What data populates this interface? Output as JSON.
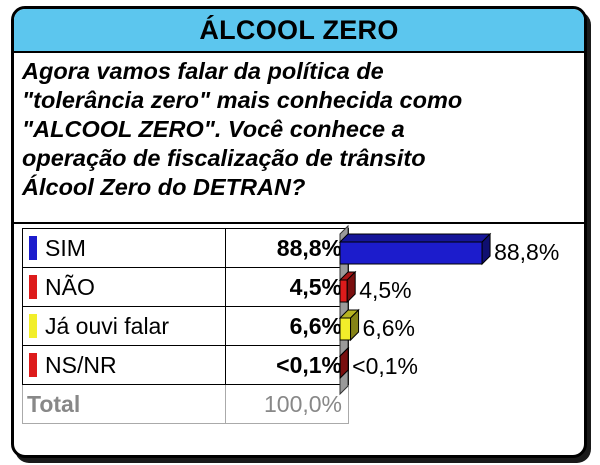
{
  "header": {
    "title": "ÁLCOOL ZERO",
    "accent_color": "#5cc6ee"
  },
  "question": {
    "lines": [
      "Agora vamos falar da política de",
      "\"tolerância zero\" mais conhecida como",
      "\"ALCOOL ZERO\". Você conhece a",
      "operação de fiscalização de trânsito",
      "Álcool Zero do DETRAN?"
    ]
  },
  "table": {
    "rows": [
      {
        "label": "SIM",
        "value": "88,8%",
        "color": "#1c1ccc"
      },
      {
        "label": "NÃO",
        "value": "4,5%",
        "color": "#dd1b1b"
      },
      {
        "label": "Já ouvi falar",
        "value": "6,6%",
        "color": "#f2ee2a"
      },
      {
        "label": "NS/NR",
        "value": "<0,1%",
        "color": "#dd1b1b"
      }
    ],
    "total": {
      "label": "Total",
      "value": "100,0%"
    }
  },
  "chart_data": {
    "type": "bar",
    "orientation": "horizontal",
    "style": "3d",
    "categories": [
      "SIM",
      "NÃO",
      "Já ouvi falar",
      "NS/NR"
    ],
    "values": [
      88.8,
      4.5,
      6.6,
      0.1
    ],
    "data_labels": [
      "88,8%",
      "4,5%",
      "6,6%",
      "<0,1%"
    ],
    "colors": [
      "#1c1ccc",
      "#dd1b1b",
      "#f2ee2a",
      "#dd1b1b"
    ],
    "xlim": [
      0,
      100
    ],
    "grid": false,
    "legend": "none"
  }
}
